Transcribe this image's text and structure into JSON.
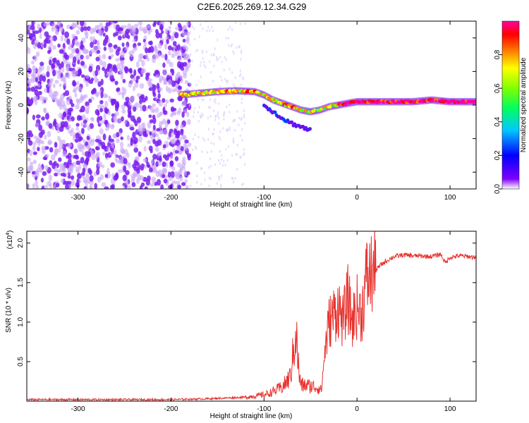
{
  "title": "C2E6.2025.269.12.34.G29",
  "chart_data": [
    {
      "type": "heatmap",
      "title": "C2E6.2025.269.12.34.G29",
      "xlabel": "Height of straight line (km)",
      "ylabel": "Frequency (Hz)",
      "xlim": [
        -355,
        128
      ],
      "ylim": [
        -50,
        50
      ],
      "xticks": [
        -300,
        -200,
        -100,
        0,
        100
      ],
      "yticks": [
        -40,
        -20,
        0,
        20,
        40
      ],
      "colorbar": {
        "label": "Normalized spectral amplitude",
        "range": [
          0,
          1
        ],
        "ticks": [
          "0.0",
          "0.2",
          "0.4",
          "0.6",
          "0.8"
        ],
        "colormap": [
          "#ffffff",
          "#7f00ff",
          "#0000ff",
          "#00c8ff",
          "#00ff60",
          "#80ff00",
          "#ffff00",
          "#ff8000",
          "#ff0000",
          "#ff00a0"
        ]
      },
      "noise_region_x": [
        -355,
        -180
      ],
      "faint_region_x": [
        -180,
        -120
      ],
      "signal_track": {
        "x": [
          -190,
          -170,
          -150,
          -130,
          -110,
          -100,
          -90,
          -80,
          -70,
          -60,
          -50,
          -40,
          -30,
          -20,
          -10,
          0,
          20,
          40,
          60,
          80,
          100,
          128
        ],
        "freq": [
          6,
          7,
          8,
          8.5,
          8,
          6,
          3,
          1,
          -1,
          -3,
          -4,
          -3,
          -1,
          0,
          1,
          2,
          2,
          2,
          2,
          3,
          2,
          2
        ]
      },
      "branch_track": {
        "x": [
          -100,
          -90,
          -80,
          -70,
          -60,
          -50
        ],
        "freq": [
          0,
          -4,
          -8,
          -11,
          -13,
          -15
        ]
      },
      "grid": false
    },
    {
      "type": "line",
      "xlabel": "Height of straight line (km)",
      "ylabel": "SNR (10 * v/v)",
      "y_multiplier": "(x10",
      "y_multiplier_exp": "4",
      "xlim": [
        -355,
        128
      ],
      "ylim": [
        0,
        2.15
      ],
      "xticks": [
        -300,
        -200,
        -100,
        0,
        100
      ],
      "yticks": [
        "0.5",
        "1.0",
        "1.5",
        "2.0"
      ],
      "color": "#e8322e",
      "series": [
        {
          "x": [
            -355,
            -200,
            -160,
            -120,
            -100,
            -90,
            -80,
            -72,
            -68,
            -66,
            -64,
            -62,
            -60,
            -55,
            -45,
            -38,
            -35,
            -30,
            -25,
            -20,
            -15,
            -10,
            -5,
            0,
            5,
            10,
            15,
            20,
            25,
            30,
            35,
            40,
            50,
            60,
            80,
            90,
            95,
            100,
            110,
            128
          ],
          "values": [
            0.02,
            0.02,
            0.03,
            0.05,
            0.08,
            0.12,
            0.18,
            0.3,
            0.65,
            0.95,
            0.6,
            0.3,
            0.2,
            0.2,
            0.18,
            0.15,
            0.6,
            1.0,
            1.1,
            1.2,
            1.0,
            1.3,
            1.0,
            1.2,
            1.1,
            1.55,
            1.6,
            1.65,
            1.72,
            1.76,
            1.8,
            1.83,
            1.85,
            1.84,
            1.83,
            1.86,
            1.75,
            1.82,
            1.84,
            1.82
          ]
        }
      ],
      "grid": false
    }
  ]
}
